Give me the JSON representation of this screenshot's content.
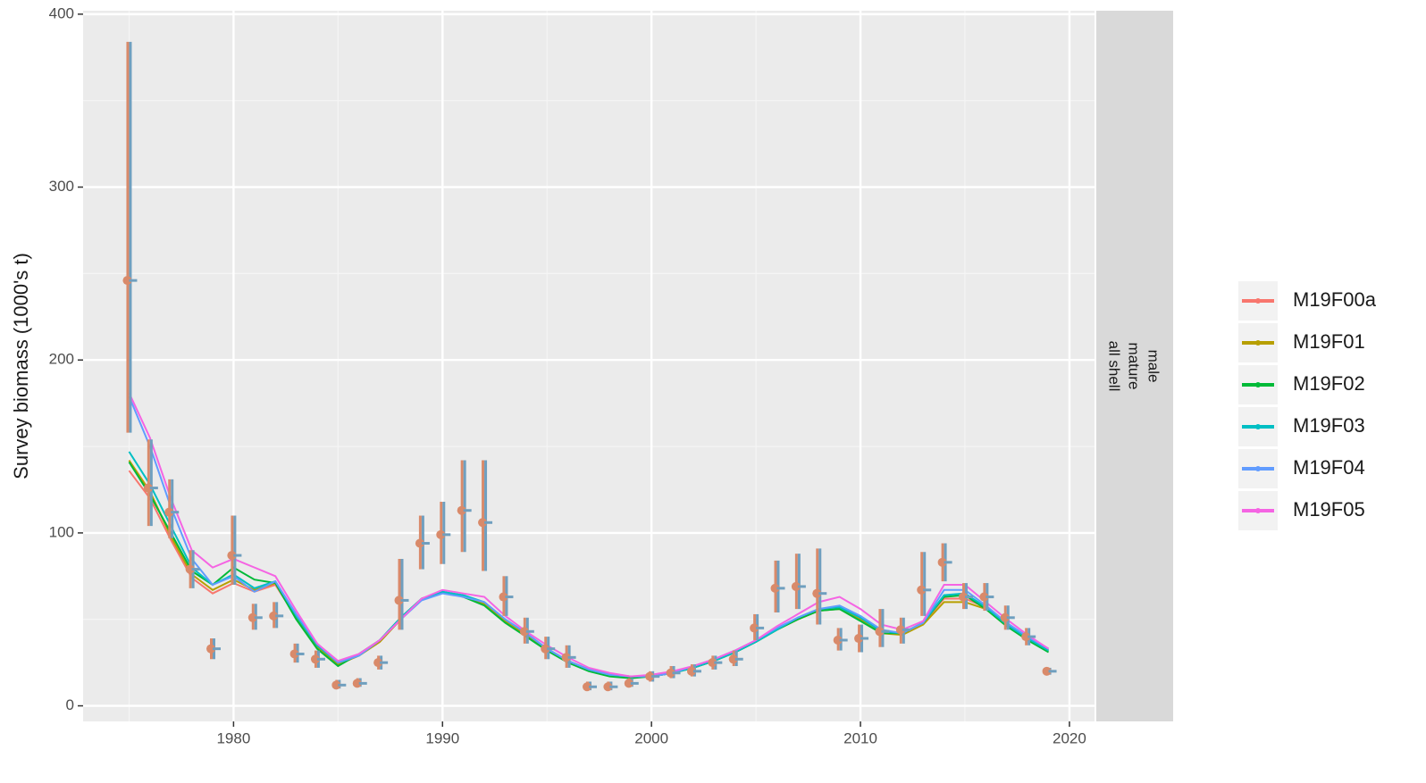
{
  "chart_data": {
    "type": "line",
    "y_label": "Survey biomass (1000's t)",
    "strip": [
      "male",
      "mature",
      "all shell"
    ],
    "xlim": [
      1972.8,
      2021.2
    ],
    "ylim": [
      -9,
      402
    ],
    "xticks": [
      1980,
      1990,
      2000,
      2010,
      2020
    ],
    "yticks": [
      0,
      100,
      200,
      300,
      400
    ],
    "grid": true,
    "legend": "right",
    "x": [
      1975,
      1976,
      1977,
      1978,
      1979,
      1980,
      1981,
      1982,
      1983,
      1984,
      1985,
      1986,
      1987,
      1988,
      1989,
      1990,
      1991,
      1992,
      1993,
      1994,
      1995,
      1996,
      1997,
      1998,
      1999,
      2000,
      2001,
      2002,
      2003,
      2004,
      2005,
      2006,
      2007,
      2008,
      2009,
      2010,
      2011,
      2012,
      2013,
      2014,
      2015,
      2016,
      2017,
      2018,
      2019
    ],
    "observed": {
      "color": "#d98a6a",
      "bar_color": "#6f9fbf",
      "values": [
        246,
        126,
        112,
        79,
        33,
        87,
        51,
        52,
        30,
        27,
        12,
        13,
        25,
        61,
        94,
        99,
        113,
        106,
        63,
        43,
        33,
        28,
        11,
        11,
        13,
        17,
        19,
        20,
        25,
        27,
        45,
        68,
        69,
        65,
        38,
        39,
        43,
        44,
        67,
        83,
        63,
        63,
        51,
        40,
        20
      ],
      "lower": [
        158,
        104,
        97,
        68,
        27,
        70,
        44,
        45,
        25,
        22,
        10,
        11,
        21,
        44,
        79,
        82,
        89,
        78,
        52,
        36,
        27,
        22,
        9,
        9,
        11,
        14,
        16,
        17,
        21,
        23,
        38,
        54,
        56,
        47,
        32,
        31,
        34,
        36,
        52,
        72,
        56,
        55,
        44,
        35,
        18
      ],
      "upper": [
        384,
        154,
        131,
        90,
        39,
        110,
        59,
        60,
        36,
        32,
        15,
        16,
        29,
        85,
        110,
        118,
        142,
        142,
        75,
        51,
        40,
        35,
        14,
        14,
        16,
        20,
        23,
        24,
        29,
        32,
        53,
        84,
        88,
        91,
        45,
        47,
        56,
        51,
        89,
        94,
        71,
        71,
        58,
        45,
        22
      ]
    },
    "series": [
      {
        "name": "M19F00a",
        "color": "#f8766d",
        "values": [
          136,
          120,
          96,
          74,
          65,
          71,
          66,
          70,
          51,
          34,
          24,
          29,
          37,
          50,
          62,
          66,
          63,
          59,
          49,
          41,
          33,
          26,
          21,
          18,
          17,
          17,
          19,
          22,
          26,
          31,
          37,
          44,
          50,
          55,
          57,
          51,
          43,
          42,
          48,
          62,
          62,
          57,
          47,
          39,
          32
        ]
      },
      {
        "name": "M19F01",
        "color": "#b79f00",
        "values": [
          142,
          124,
          98,
          76,
          67,
          73,
          67,
          71,
          51,
          34,
          24,
          29,
          37,
          50,
          62,
          66,
          63,
          59,
          49,
          41,
          33,
          26,
          21,
          18,
          17,
          17,
          19,
          22,
          26,
          31,
          37,
          44,
          50,
          55,
          56,
          50,
          42,
          41,
          47,
          60,
          60,
          56,
          46,
          39,
          32
        ]
      },
      {
        "name": "M19F02",
        "color": "#00ba38",
        "values": [
          141,
          122,
          100,
          78,
          70,
          80,
          73,
          71,
          50,
          33,
          23,
          30,
          38,
          51,
          62,
          66,
          63,
          58,
          48,
          40,
          32,
          25,
          20,
          17,
          16,
          17,
          19,
          22,
          26,
          31,
          37,
          44,
          50,
          55,
          56,
          49,
          42,
          42,
          48,
          63,
          64,
          56,
          46,
          38,
          31
        ]
      },
      {
        "name": "M19F03",
        "color": "#00bfc4",
        "values": [
          147,
          128,
          104,
          80,
          70,
          76,
          68,
          72,
          52,
          35,
          25,
          29,
          38,
          51,
          62,
          66,
          64,
          60,
          50,
          42,
          33,
          26,
          21,
          18,
          17,
          17,
          19,
          22,
          26,
          31,
          37,
          44,
          51,
          56,
          57,
          51,
          43,
          42,
          48,
          64,
          65,
          57,
          47,
          39,
          32
        ]
      },
      {
        "name": "M19F04",
        "color": "#619cff",
        "values": [
          179,
          150,
          115,
          85,
          70,
          75,
          66,
          72,
          53,
          36,
          25,
          29,
          38,
          50,
          61,
          65,
          63,
          60,
          50,
          42,
          33,
          26,
          21,
          18,
          17,
          17,
          19,
          23,
          27,
          32,
          38,
          45,
          51,
          56,
          58,
          52,
          44,
          42,
          48,
          67,
          67,
          58,
          48,
          40,
          33
        ]
      },
      {
        "name": "M19F05",
        "color": "#f564e3",
        "values": [
          181,
          155,
          120,
          90,
          80,
          85,
          80,
          75,
          55,
          36,
          26,
          30,
          38,
          50,
          62,
          67,
          65,
          63,
          52,
          43,
          35,
          28,
          22,
          19,
          17,
          18,
          20,
          23,
          27,
          32,
          38,
          46,
          53,
          60,
          63,
          56,
          47,
          44,
          49,
          70,
          70,
          60,
          50,
          41,
          33
        ]
      }
    ]
  }
}
